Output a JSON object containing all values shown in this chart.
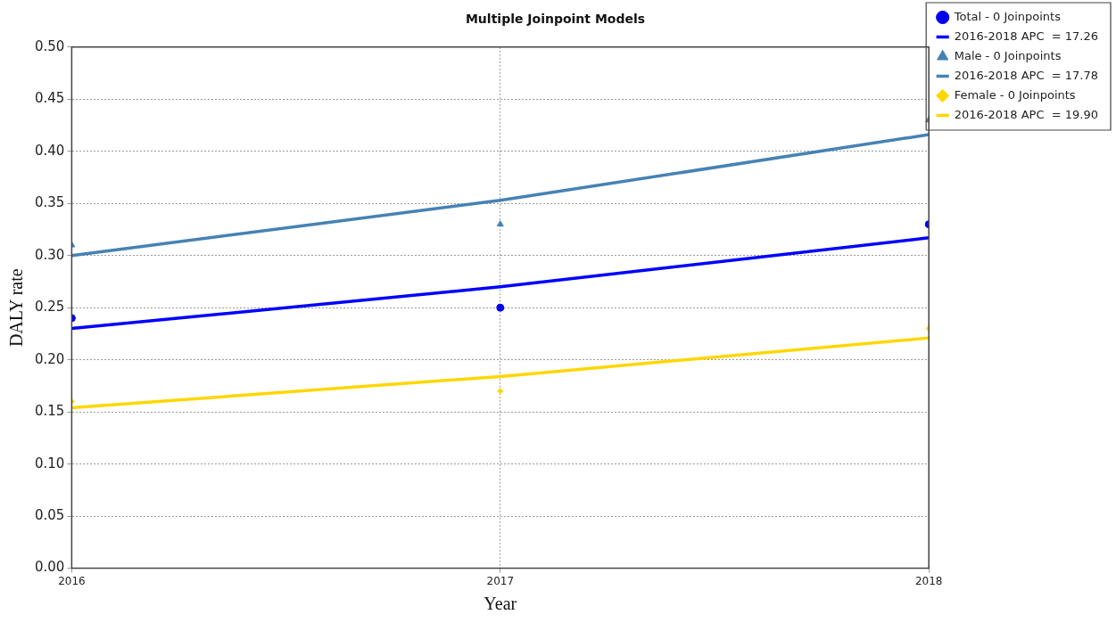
{
  "chart_data": {
    "type": "line",
    "title": "Multiple Joinpoint Models",
    "xlabel": "Year",
    "ylabel": "DALY rate",
    "x": [
      2016,
      2017,
      2018
    ],
    "xlim": [
      2016,
      2018
    ],
    "xticks": [
      2016,
      2017,
      2018
    ],
    "ylim": [
      0,
      0.5
    ],
    "yticks": [
      {
        "value": 0,
        "label": "0.00"
      },
      0.05,
      {
        "value": 0.1,
        "label": "0.10"
      },
      0.15,
      {
        "value": 0.2,
        "label": "0.20"
      },
      0.25,
      {
        "value": 0.3,
        "label": "0.30"
      },
      0.35,
      {
        "value": 0.4,
        "label": "0.40"
      },
      0.45,
      {
        "value": 0.5,
        "label": "0.50"
      }
    ],
    "grid": true,
    "legend": "top right",
    "line_style": "solid",
    "series": [
      {
        "name": "Total - 0 Joinpoints",
        "type": "scatter",
        "marker": "circle",
        "color": "#0000ee",
        "values": [
          0.24,
          0.25,
          0.33
        ]
      },
      {
        "name": "2016-2018 APC  = 17.26",
        "type": "line",
        "marker": "none",
        "color": "#0000ff",
        "values": [
          0.23,
          0.27,
          0.317
        ]
      },
      {
        "name": "Male - 0 Joinpoints",
        "type": "scatter",
        "marker": "triangle",
        "color": "#4682b4",
        "values": [
          0.31,
          0.33,
          0.43
        ]
      },
      {
        "name": "2016-2018 APC  = 17.78",
        "type": "line",
        "marker": "none",
        "color": "#4682b4",
        "values": [
          0.3,
          0.353,
          0.416
        ]
      },
      {
        "name": "Female - 0 Joinpoints",
        "type": "scatter",
        "marker": "diamond",
        "color": "#ffd700",
        "values": [
          0.16,
          0.17,
          0.23
        ]
      },
      {
        "name": "2016-2018 APC  = 19.90",
        "type": "line",
        "marker": "none",
        "color": "#ffd700",
        "values": [
          0.154,
          0.184,
          0.221
        ]
      }
    ]
  }
}
